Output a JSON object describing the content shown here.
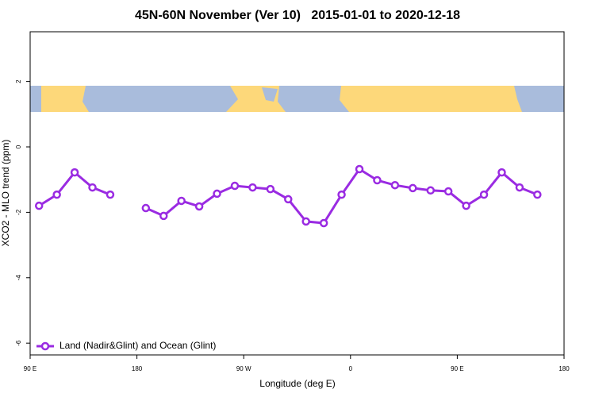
{
  "chart_data": {
    "type": "line",
    "title": "45N-60N November (Ver 10)   2015-01-01 to 2020-12-18",
    "xlabel": "Longitude (deg E)",
    "ylabel": "XCO2 - MLO trend (ppm)",
    "x": [
      97.5,
      112.5,
      127.5,
      142.5,
      157.5,
      172.5,
      187.5,
      202.5,
      217.5,
      232.5,
      247.5,
      262.5,
      277.5,
      292.5,
      307.5,
      322.5,
      337.5,
      352.5,
      367.5,
      382.5,
      397.5,
      412.5,
      427.5,
      442.5,
      457.5,
      472.5,
      487.5,
      502.5,
      517.5
    ],
    "series": [
      {
        "name": "Land (Nadir&Glint) and Ocean (Glint)",
        "color": "#9a2be2",
        "values": [
          -1.8,
          -1.46,
          -0.78,
          -1.24,
          -1.46,
          null,
          -1.87,
          -2.11,
          -1.65,
          -1.82,
          -1.43,
          -1.19,
          -1.24,
          -1.29,
          -1.6,
          -2.28,
          -2.33,
          -1.46,
          -0.68,
          -1.02,
          -1.17,
          -1.26,
          -1.33,
          -1.36,
          -1.8,
          -1.46,
          -0.78,
          -1.24,
          -1.46
        ]
      }
    ],
    "xlim": [
      90,
      540
    ],
    "xticks": [
      {
        "value": 90,
        "label": "90 E"
      },
      180,
      {
        "value": 270,
        "label": "90 W"
      },
      {
        "value": 360,
        "label": "0"
      },
      {
        "value": 450,
        "label": "90 E"
      },
      {
        "value": 540,
        "label": "180"
      }
    ],
    "ylim": [
      -6.36,
      3.52
    ],
    "yticks": [
      -6,
      -4,
      -2,
      0,
      2
    ],
    "legend": "bottomleft",
    "grid": false
  }
}
